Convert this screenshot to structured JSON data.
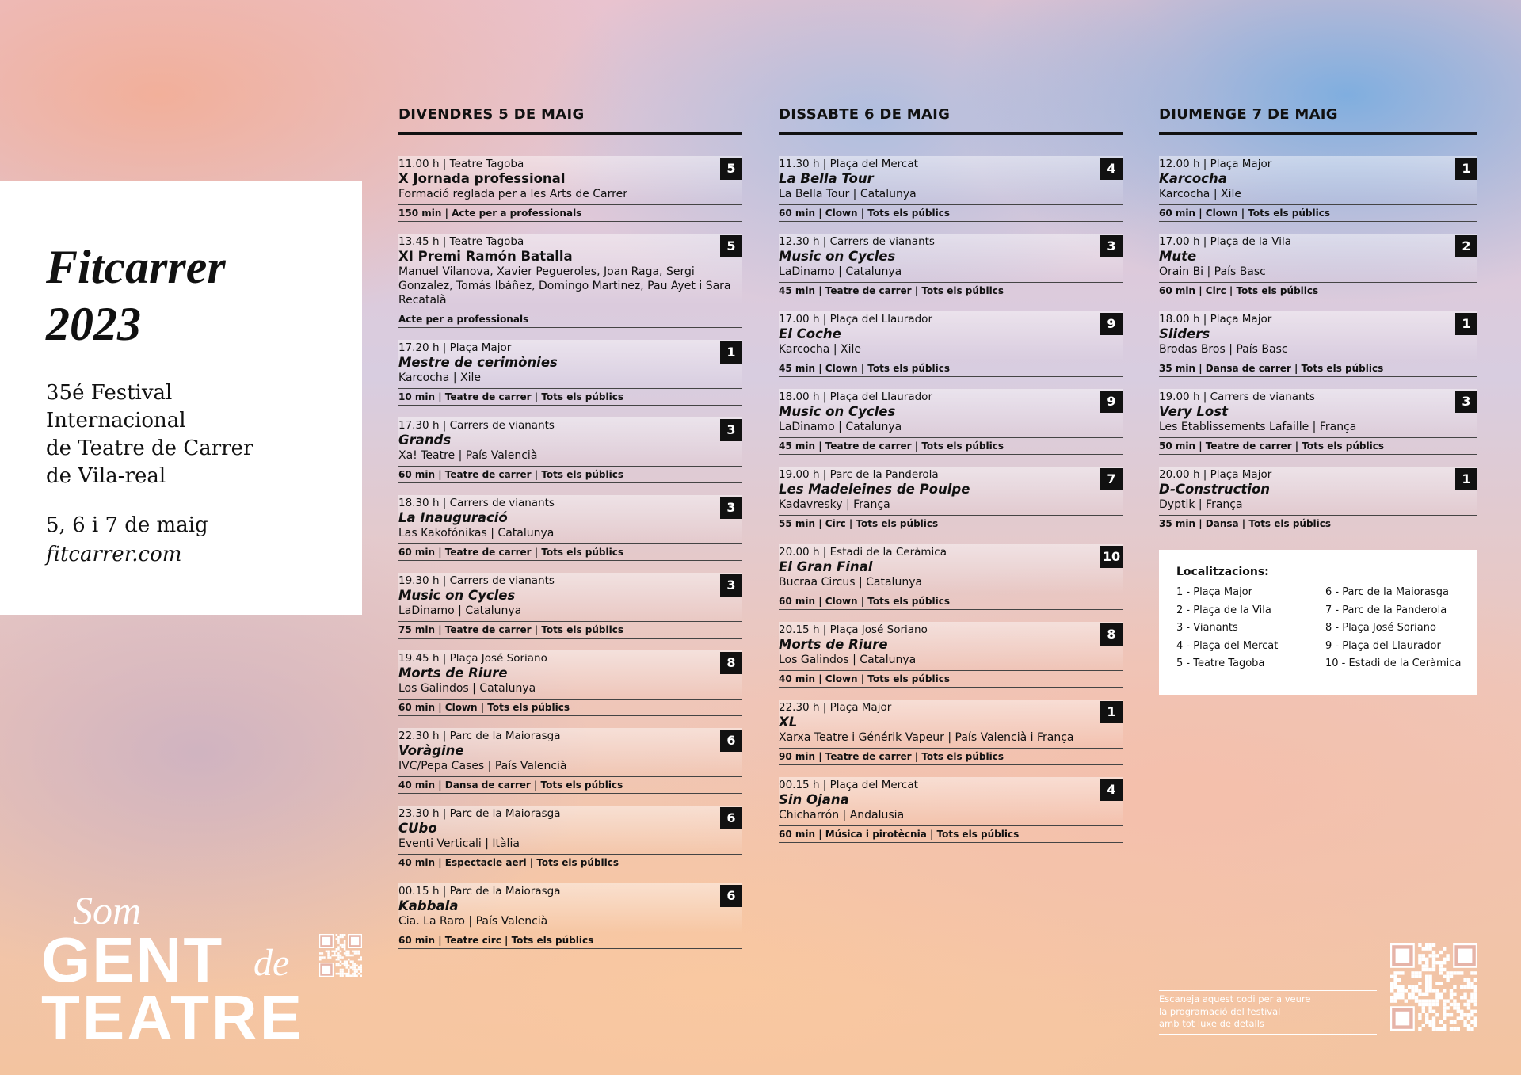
{
  "sidebar": {
    "title_lines": [
      "Fitcarrer",
      "2023"
    ],
    "subtitle_lines": [
      "35é Festival",
      "Internacional",
      "de Teatre de Carrer",
      "de Vila-real"
    ],
    "dates": "5, 6 i 7 de maig",
    "website": "fitcarrer.com"
  },
  "logo": {
    "small": "Som",
    "big_line1": "GENT",
    "script_word": "de",
    "big_line2": "TEATRE"
  },
  "days": [
    {
      "heading": "DIVENDRES 5 DE MAIG",
      "events": [
        {
          "time_place": "11.00 h | Teatre Tagoba",
          "location_number": 5,
          "title": "X Jornada professional",
          "company": "Formació reglada per a les Arts de Carrer",
          "details": "150 min | Acte per a professionals"
        },
        {
          "time_place": "13.45 h | Teatre Tagoba",
          "location_number": 5,
          "title": "XI Premi Ramón Batalla",
          "company": "Manuel Vilanova, Xavier Pegueroles, Joan Raga, Sergi Gonzalez, Tomás Ibáñez, Domingo Martinez, Pau Ayet i Sara Recatalà",
          "details": "Acte per a professionals"
        },
        {
          "time_place": "17.20 h | Plaça Major",
          "location_number": 1,
          "title": "Mestre de cerimònies",
          "company": "Karcocha | Xile",
          "details": "10 min | Teatre de carrer | Tots els públics"
        },
        {
          "time_place": "17.30 h | Carrers de vianants",
          "location_number": 3,
          "title": "Grands",
          "company": "Xa! Teatre | País Valencià",
          "details": "60 min | Teatre de carrer | Tots els públics"
        },
        {
          "time_place": "18.30 h | Carrers de vianants",
          "location_number": 3,
          "title": "La Inauguració",
          "company": "Las Kakofónikas | Catalunya",
          "details": "60 min | Teatre de carrer | Tots els públics"
        },
        {
          "time_place": "19.30 h | Carrers de vianants",
          "location_number": 3,
          "title": "Music on Cycles",
          "company": "LaDinamo | Catalunya",
          "details": "75 min | Teatre de carrer | Tots els públics"
        },
        {
          "time_place": "19.45 h | Plaça José Soriano",
          "location_number": 8,
          "title": "Morts de Riure",
          "company": "Los Galindos | Catalunya",
          "details": "60 min | Clown | Tots els públics"
        },
        {
          "time_place": "22.30 h | Parc de la Maiorasga",
          "location_number": 6,
          "title": "Voràgine",
          "company": "IVC/Pepa Cases | País Valencià",
          "details": "40 min | Dansa de carrer | Tots els públics"
        },
        {
          "time_place": "23.30 h | Parc de la Maiorasga",
          "location_number": 6,
          "title": "CUbo",
          "company": "Eventi Verticali | Itàlia",
          "details": "40 min | Espectacle aeri | Tots els públics"
        },
        {
          "time_place": "00.15 h | Parc de la Maiorasga",
          "location_number": 6,
          "title": "Kabbala",
          "company": "Cia. La Raro | País Valencià",
          "details": "60 min | Teatre circ | Tots els públics"
        }
      ]
    },
    {
      "heading": "DISSABTE 6 DE MAIG",
      "events": [
        {
          "time_place": "11.30 h | Plaça del Mercat",
          "location_number": 4,
          "title": "La Bella Tour",
          "company": "La Bella Tour | Catalunya",
          "details": "60 min | Clown | Tots els públics"
        },
        {
          "time_place": "12.30 h | Carrers de vianants",
          "location_number": 3,
          "title": "Music on Cycles",
          "company": "LaDinamo | Catalunya",
          "details": "45 min | Teatre de carrer | Tots els públics"
        },
        {
          "time_place": "17.00 h | Plaça del Llaurador",
          "location_number": 9,
          "title": "El Coche",
          "company": "Karcocha | Xile",
          "details": "45 min | Clown | Tots els públics"
        },
        {
          "time_place": "18.00 h | Plaça del Llaurador",
          "location_number": 9,
          "title": "Music on Cycles",
          "company": "LaDinamo | Catalunya",
          "details": "45 min | Teatre de carrer | Tots els públics"
        },
        {
          "time_place": "19.00 h | Parc de la Panderola",
          "location_number": 7,
          "title": "Les Madeleines de Poulpe",
          "company": "Kadavresky | França",
          "details": "55 min | Circ | Tots els públics"
        },
        {
          "time_place": "20.00 h | Estadi de la Ceràmica",
          "location_number": 10,
          "title": "El Gran Final",
          "company": "Bucraa Circus | Catalunya",
          "details": "60 min | Clown | Tots els públics"
        },
        {
          "time_place": "20.15 h | Plaça José Soriano",
          "location_number": 8,
          "title": "Morts de Riure",
          "company": "Los Galindos | Catalunya",
          "details": "40 min | Clown | Tots els públics"
        },
        {
          "time_place": "22.30 h | Plaça Major",
          "location_number": 1,
          "title": "XL",
          "company": "Xarxa Teatre i Générik Vapeur | País Valencià i França",
          "details": "90 min | Teatre de carrer | Tots els públics"
        },
        {
          "time_place": "00.15 h | Plaça del Mercat",
          "location_number": 4,
          "title": "Sin Ojana",
          "company": "Chicharrón | Andalusia",
          "details": "60 min | Música i pirotècnia | Tots els públics"
        }
      ]
    },
    {
      "heading": "DIUMENGE 7 DE MAIG",
      "events": [
        {
          "time_place": "12.00 h | Plaça Major",
          "location_number": 1,
          "title": "Karcocha",
          "company": "Karcocha | Xile",
          "details": "60 min | Clown | Tots els públics"
        },
        {
          "time_place": "17.00 h | Plaça de la Vila",
          "location_number": 2,
          "title": "Mute",
          "company": "Orain Bi | País Basc",
          "details": "60 min | Circ | Tots els públics"
        },
        {
          "time_place": "18.00 h | Plaça Major",
          "location_number": 1,
          "title": "Sliders",
          "company": "Brodas Bros | País Basc",
          "details": "35 min | Dansa de carrer | Tots els públics"
        },
        {
          "time_place": "19.00 h | Carrers de vianants",
          "location_number": 3,
          "title": "Very Lost",
          "company": "Les Etablissements Lafaille | França",
          "details": "50 min | Teatre de carrer | Tots els públics"
        },
        {
          "time_place": "20.00 h | Plaça Major",
          "location_number": 1,
          "title": "D-Construction",
          "company": "Dyptik | França",
          "details": "35 min | Dansa | Tots els públics"
        }
      ]
    }
  ],
  "locations": {
    "heading": "Localitzacions:",
    "items": [
      "1 - Plaça Major",
      "2 - Plaça de la Vila",
      "3 - Vianants",
      "4 - Plaça del Mercat",
      "5 - Teatre Tagoba",
      "6 - Parc de la Maiorasga",
      "7 - Parc de la Panderola",
      "8 - Plaça José Soriano",
      "9 - Plaça del Llaurador",
      "10 - Estadi de la Ceràmica"
    ]
  },
  "qr_note": {
    "lines": [
      "Escaneja aquest codi per a veure",
      "la programació del festival",
      "amb tot luxe de detalls"
    ]
  }
}
